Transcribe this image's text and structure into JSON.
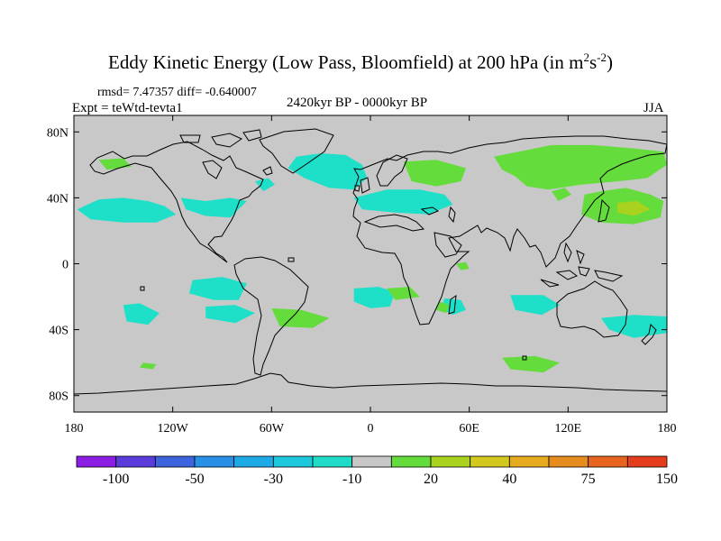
{
  "title": {
    "main": "Eddy Kinetic Energy (Low Pass, Bloomfield) at 200 hPa (in m",
    "sup1": "2",
    "mid": "s",
    "sup2": "-2",
    "end": ")"
  },
  "stats": "rmsd= 7.47357 diff= -0.640007",
  "experiment": "Expt = teWtd-tevta1",
  "period": "2420kyr BP - 0000kyr BP",
  "season": "JJA",
  "map": {
    "projection": "cylindrical equidistant",
    "lon_range": [
      -180,
      180
    ],
    "lat_range": [
      -90,
      90
    ],
    "background_color": "#c8c8c8",
    "lat_ticks": [
      {
        "lat": 80,
        "label": "80N"
      },
      {
        "lat": 40,
        "label": "40N"
      },
      {
        "lat": 0,
        "label": "0"
      },
      {
        "lat": -40,
        "label": "40S"
      },
      {
        "lat": -80,
        "label": "80S"
      }
    ],
    "lon_ticks": [
      {
        "lon": -180,
        "label": "180"
      },
      {
        "lon": -120,
        "label": "120W"
      },
      {
        "lon": -60,
        "label": "60W"
      },
      {
        "lon": 0,
        "label": "0"
      },
      {
        "lon": 60,
        "label": "60E"
      },
      {
        "lon": 120,
        "label": "120E"
      },
      {
        "lon": 180,
        "label": "180"
      }
    ],
    "anomaly_regions": [
      {
        "name": "n-pacific-west-neg",
        "color": "#1ee0c8",
        "points": [
          [
            -178,
            33
          ],
          [
            -165,
            39
          ],
          [
            -150,
            40
          ],
          [
            -135,
            38
          ],
          [
            -125,
            35
          ],
          [
            -118,
            30
          ],
          [
            -130,
            25
          ],
          [
            -150,
            25
          ],
          [
            -170,
            27
          ]
        ]
      },
      {
        "name": "n-america-neg",
        "color": "#1ee0c8",
        "points": [
          [
            -115,
            40
          ],
          [
            -100,
            38
          ],
          [
            -85,
            40
          ],
          [
            -75,
            38
          ],
          [
            -85,
            28
          ],
          [
            -100,
            29
          ],
          [
            -112,
            33
          ]
        ]
      },
      {
        "name": "alaska-pos",
        "color": "#64dc3c",
        "points": [
          [
            -165,
            63
          ],
          [
            -150,
            64
          ],
          [
            -145,
            59
          ],
          [
            -160,
            57
          ]
        ]
      },
      {
        "name": "n-atlantic-neg",
        "color": "#1ee0c8",
        "points": [
          [
            -45,
            65
          ],
          [
            -30,
            67
          ],
          [
            -15,
            66
          ],
          [
            -5,
            60
          ],
          [
            -2,
            52
          ],
          [
            -10,
            45
          ],
          [
            -25,
            46
          ],
          [
            -40,
            52
          ],
          [
            -50,
            58
          ]
        ]
      },
      {
        "name": "w-europe-neg",
        "color": "#1ee0c8",
        "points": [
          [
            -10,
            40
          ],
          [
            10,
            45
          ],
          [
            30,
            45
          ],
          [
            45,
            42
          ],
          [
            50,
            36
          ],
          [
            35,
            30
          ],
          [
            15,
            31
          ],
          [
            -5,
            33
          ]
        ]
      },
      {
        "name": "labrador-neg",
        "color": "#1ee0c8",
        "points": [
          [
            -70,
            50
          ],
          [
            -62,
            52
          ],
          [
            -58,
            48
          ],
          [
            -65,
            44
          ]
        ]
      },
      {
        "name": "eurasia-pos",
        "color": "#64dc3c",
        "points": [
          [
            75,
            65
          ],
          [
            90,
            68
          ],
          [
            110,
            72
          ],
          [
            135,
            72
          ],
          [
            160,
            70
          ],
          [
            178,
            68
          ],
          [
            180,
            60
          ],
          [
            168,
            52
          ],
          [
            150,
            50
          ],
          [
            128,
            48
          ],
          [
            108,
            45
          ],
          [
            95,
            47
          ],
          [
            88,
            53
          ],
          [
            80,
            57
          ]
        ]
      },
      {
        "name": "e-europe-pos",
        "color": "#64dc3c",
        "points": [
          [
            20,
            62
          ],
          [
            40,
            63
          ],
          [
            58,
            58
          ],
          [
            55,
            50
          ],
          [
            40,
            47
          ],
          [
            25,
            50
          ]
        ]
      },
      {
        "name": "nw-pacific-pos",
        "color": "#64dc3c",
        "points": [
          [
            130,
            42
          ],
          [
            140,
            44
          ],
          [
            155,
            46
          ],
          [
            170,
            42
          ],
          [
            178,
            38
          ],
          [
            176,
            28
          ],
          [
            160,
            24
          ],
          [
            140,
            25
          ],
          [
            128,
            30
          ]
        ]
      },
      {
        "name": "nw-pacific-core",
        "color": "#a8d21e",
        "points": [
          [
            150,
            37
          ],
          [
            162,
            38
          ],
          [
            170,
            33
          ],
          [
            160,
            29
          ],
          [
            150,
            31
          ]
        ]
      },
      {
        "name": "china-pos",
        "color": "#64dc3c",
        "points": [
          [
            110,
            44
          ],
          [
            118,
            46
          ],
          [
            122,
            42
          ],
          [
            114,
            38
          ]
        ]
      },
      {
        "name": "e-pacific-tropic-neg",
        "color": "#1ee0c8",
        "points": [
          [
            -108,
            -10
          ],
          [
            -90,
            -8
          ],
          [
            -75,
            -12
          ],
          [
            -80,
            -22
          ],
          [
            -95,
            -22
          ],
          [
            -110,
            -18
          ]
        ]
      },
      {
        "name": "s-pacific-neg",
        "color": "#1ee0c8",
        "points": [
          [
            -150,
            -25
          ],
          [
            -140,
            -24
          ],
          [
            -128,
            -30
          ],
          [
            -135,
            -37
          ],
          [
            -148,
            -35
          ]
        ]
      },
      {
        "name": "s-pacific-east-neg",
        "color": "#1ee0c8",
        "points": [
          [
            -100,
            -26
          ],
          [
            -82,
            -25
          ],
          [
            -70,
            -30
          ],
          [
            -82,
            -36
          ],
          [
            -100,
            -33
          ]
        ]
      },
      {
        "name": "s-atlantic-pos",
        "color": "#64dc3c",
        "points": [
          [
            -60,
            -27
          ],
          [
            -42,
            -28
          ],
          [
            -25,
            -33
          ],
          [
            -35,
            -39
          ],
          [
            -55,
            -38
          ]
        ]
      },
      {
        "name": "s-atlantic-neg",
        "color": "#1ee0c8",
        "points": [
          [
            -10,
            -15
          ],
          [
            5,
            -14
          ],
          [
            15,
            -17
          ],
          [
            12,
            -26
          ],
          [
            0,
            -27
          ],
          [
            -10,
            -23
          ]
        ]
      },
      {
        "name": "s-indian-neg",
        "color": "#1ee0c8",
        "points": [
          [
            45,
            -21
          ],
          [
            55,
            -22
          ],
          [
            58,
            -28
          ],
          [
            50,
            -31
          ],
          [
            43,
            -27
          ]
        ]
      },
      {
        "name": "s-indian-east-neg",
        "color": "#1ee0c8",
        "points": [
          [
            85,
            -19
          ],
          [
            105,
            -19
          ],
          [
            115,
            -25
          ],
          [
            104,
            -31
          ],
          [
            88,
            -28
          ]
        ]
      },
      {
        "name": "australia-neg",
        "color": "#1ee0c8",
        "points": [
          [
            140,
            -33
          ],
          [
            160,
            -31
          ],
          [
            180,
            -32
          ],
          [
            180,
            -42
          ],
          [
            160,
            -45
          ],
          [
            145,
            -40
          ]
        ]
      },
      {
        "name": "se-pacific-pos",
        "color": "#64dc3c",
        "points": [
          [
            -138,
            -60
          ],
          [
            -130,
            -61
          ],
          [
            -132,
            -64
          ],
          [
            -140,
            -63
          ]
        ]
      },
      {
        "name": "southern-ocean-pos",
        "color": "#64dc3c",
        "points": [
          [
            80,
            -57
          ],
          [
            100,
            -56
          ],
          [
            115,
            -60
          ],
          [
            105,
            -66
          ],
          [
            85,
            -64
          ]
        ]
      },
      {
        "name": "e-africa-pos",
        "color": "#64dc3c",
        "points": [
          [
            52,
            0
          ],
          [
            58,
            1
          ],
          [
            60,
            -3
          ],
          [
            55,
            -4
          ]
        ]
      },
      {
        "name": "s-indian-west-pos",
        "color": "#64dc3c",
        "points": [
          [
            42,
            -23
          ],
          [
            48,
            -25
          ],
          [
            46,
            -30
          ],
          [
            40,
            -28
          ]
        ]
      },
      {
        "name": "w-africa-pos",
        "color": "#64dc3c",
        "points": [
          [
            10,
            -15
          ],
          [
            24,
            -14
          ],
          [
            30,
            -20
          ],
          [
            15,
            -22
          ]
        ]
      }
    ]
  },
  "colorbar": {
    "colors": [
      "#8c1ee6",
      "#5a3cdc",
      "#3c64dc",
      "#2891e6",
      "#1eaae6",
      "#1ec8dc",
      "#1edcc8",
      "#c8c8c8",
      "#64dc3c",
      "#a8d21e",
      "#d2c81e",
      "#e6aa1e",
      "#e68c1e",
      "#e6641e",
      "#e63c1e"
    ],
    "labels": [
      {
        "index": 1,
        "text": "-100"
      },
      {
        "index": 3,
        "text": "-50"
      },
      {
        "index": 5,
        "text": "-30"
      },
      {
        "index": 7,
        "text": "-10"
      },
      {
        "index": 9,
        "text": "20"
      },
      {
        "index": 11,
        "text": "40"
      },
      {
        "index": 13,
        "text": "75"
      },
      {
        "index": 15,
        "text": "150"
      }
    ]
  }
}
